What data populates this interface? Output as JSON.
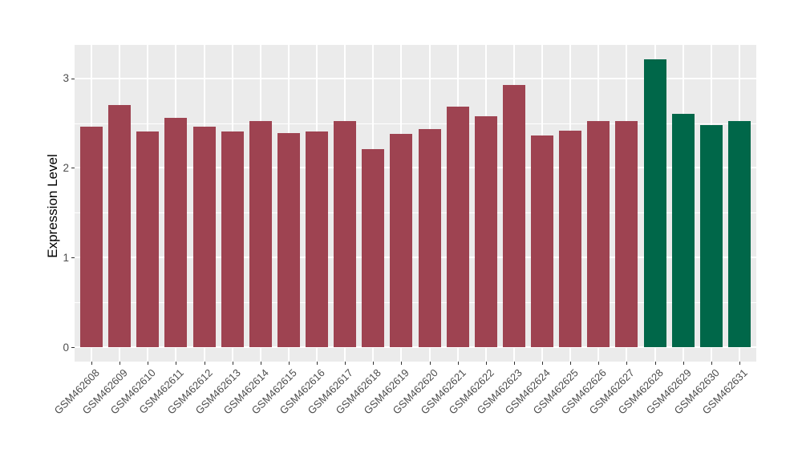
{
  "chart_data": {
    "type": "bar",
    "title": "",
    "xlabel": "",
    "ylabel": "Expression Level",
    "categories": [
      "GSM462608",
      "GSM462609",
      "GSM462610",
      "GSM462611",
      "GSM462612",
      "GSM462613",
      "GSM462614",
      "GSM462615",
      "GSM462616",
      "GSM462617",
      "GSM462618",
      "GSM462619",
      "GSM462620",
      "GSM462621",
      "GSM462622",
      "GSM462623",
      "GSM462624",
      "GSM462625",
      "GSM462626",
      "GSM462627",
      "GSM462628",
      "GSM462629",
      "GSM462630",
      "GSM462631"
    ],
    "values": [
      2.46,
      2.7,
      2.41,
      2.56,
      2.46,
      2.41,
      2.52,
      2.39,
      2.41,
      2.52,
      2.21,
      2.38,
      2.43,
      2.68,
      2.58,
      2.93,
      2.36,
      2.42,
      2.52,
      2.52,
      3.21,
      2.6,
      2.48,
      2.52
    ],
    "bar_colors": [
      "#9E4351",
      "#9E4351",
      "#9E4351",
      "#9E4351",
      "#9E4351",
      "#9E4351",
      "#9E4351",
      "#9E4351",
      "#9E4351",
      "#9E4351",
      "#9E4351",
      "#9E4351",
      "#9E4351",
      "#9E4351",
      "#9E4351",
      "#9E4351",
      "#9E4351",
      "#9E4351",
      "#9E4351",
      "#9E4351",
      "#006749",
      "#006749",
      "#006749",
      "#006749"
    ],
    "palette": {
      "default_bar": "#9E4351",
      "highlight_bar": "#006749"
    },
    "yticks": [
      0,
      1,
      2,
      3
    ],
    "minor_yticks": [
      0.5,
      1.5,
      2.5
    ],
    "ylim": [
      -0.16,
      3.37
    ],
    "grid": true,
    "legend_position": "none",
    "panel_background": "#EBEBEB",
    "grid_color": "#FFFFFF",
    "tick_mark_color": "#333333",
    "tick_label_color": "#4D4D4D",
    "axis_title_color": "#000000"
  }
}
